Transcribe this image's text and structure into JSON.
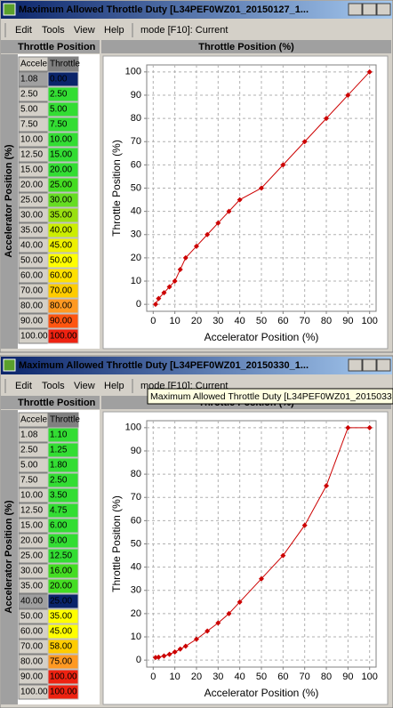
{
  "windows": [
    {
      "title": "Maximum Allowed Throttle Duty [L34PEF0WZ01_20150127_1...",
      "menu": [
        "Edit",
        "Tools",
        "View",
        "Help"
      ],
      "mode": "mode [F10]: Current",
      "table_header": "Throttle Position",
      "side_label": "Accelerator Position (%)",
      "chart_header": "Throttle Position (%)",
      "table": {
        "columns": [
          "Acceler",
          "Throttle"
        ],
        "selected_row": 0,
        "rows": [
          [
            "1.08",
            "0.00"
          ],
          [
            "2.50",
            "2.50"
          ],
          [
            "5.00",
            "5.00"
          ],
          [
            "7.50",
            "7.50"
          ],
          [
            "10.00",
            "10.00"
          ],
          [
            "12.50",
            "15.00"
          ],
          [
            "15.00",
            "20.00"
          ],
          [
            "20.00",
            "25.00"
          ],
          [
            "25.00",
            "30.00"
          ],
          [
            "30.00",
            "35.00"
          ],
          [
            "35.00",
            "40.00"
          ],
          [
            "40.00",
            "45.00"
          ],
          [
            "50.00",
            "50.00"
          ],
          [
            "60.00",
            "60.00"
          ],
          [
            "70.00",
            "70.00"
          ],
          [
            "80.00",
            "80.00"
          ],
          [
            "90.00",
            "90.00"
          ],
          [
            "100.00",
            "100.00"
          ]
        ],
        "colors": [
          "#33dd33",
          "#33dd33",
          "#33dd33",
          "#33dd33",
          "#33dd33",
          "#33dd33",
          "#33dd33",
          "#44dd22",
          "#66dd22",
          "#99e011",
          "#ccee00",
          "#eef000",
          "#ffff00",
          "#ffe000",
          "#ffcc00",
          "#ff9922",
          "#ff5511",
          "#ee2211"
        ]
      }
    },
    {
      "title": "Maximum Allowed Throttle Duty [L34PEF0WZ01_20150330_1...",
      "menu": [
        "Edit",
        "Tools",
        "View",
        "Help"
      ],
      "mode": "mode [F10]: Current",
      "table_header": "Throttle Position",
      "side_label": "Accelerator Position (%)",
      "chart_header": "Throttle Position (%)",
      "table": {
        "columns": [
          "Acceler",
          "Throttle"
        ],
        "selected_row": 11,
        "rows": [
          [
            "1.08",
            "1.10"
          ],
          [
            "2.50",
            "1.25"
          ],
          [
            "5.00",
            "1.80"
          ],
          [
            "7.50",
            "2.50"
          ],
          [
            "10.00",
            "3.50"
          ],
          [
            "12.50",
            "4.75"
          ],
          [
            "15.00",
            "6.00"
          ],
          [
            "20.00",
            "9.00"
          ],
          [
            "25.00",
            "12.50"
          ],
          [
            "30.00",
            "16.00"
          ],
          [
            "35.00",
            "20.00"
          ],
          [
            "40.00",
            "25.00"
          ],
          [
            "50.00",
            "35.00"
          ],
          [
            "60.00",
            "45.00"
          ],
          [
            "70.00",
            "58.00"
          ],
          [
            "80.00",
            "75.00"
          ],
          [
            "90.00",
            "100.00"
          ],
          [
            "100.00",
            "100.00"
          ]
        ],
        "colors": [
          "#33dd33",
          "#33dd33",
          "#33dd33",
          "#33dd33",
          "#33dd33",
          "#33dd33",
          "#33dd33",
          "#33dd33",
          "#33dd33",
          "#44dd22",
          "#44dd22",
          "#e0e000",
          "#ffff00",
          "#ffff00",
          "#ffcc00",
          "#ff9922",
          "#ee2211",
          "#ee2211"
        ]
      }
    }
  ],
  "tooltip": "Maximum Allowed Throttle Duty [L34PEF0WZ01_2015033",
  "chart_data": [
    {
      "type": "line",
      "xlabel": "Accelerator Position (%)",
      "ylabel": "Throttle Position (%)",
      "color": "#cc0000",
      "grid": true,
      "x": [
        1.08,
        2.5,
        5,
        7.5,
        10,
        12.5,
        15,
        20,
        25,
        30,
        35,
        40,
        50,
        60,
        70,
        80,
        90,
        100
      ],
      "values": [
        0,
        2.5,
        5,
        7.5,
        10,
        15,
        20,
        25,
        30,
        35,
        40,
        45,
        50,
        60,
        70,
        80,
        90,
        100
      ],
      "xlim": [
        -3,
        103
      ],
      "ylim": [
        -3,
        103
      ],
      "xticks": [
        0,
        10,
        20,
        30,
        40,
        50,
        60,
        70,
        80,
        90,
        100
      ],
      "yticks": [
        0,
        10,
        20,
        30,
        40,
        50,
        60,
        70,
        80,
        90,
        100
      ]
    },
    {
      "type": "line",
      "xlabel": "Accelerator Position (%)",
      "ylabel": "Throttle Position (%)",
      "color": "#cc0000",
      "grid": true,
      "x": [
        1.08,
        2.5,
        5,
        7.5,
        10,
        12.5,
        15,
        20,
        25,
        30,
        35,
        40,
        50,
        60,
        70,
        80,
        90,
        100
      ],
      "values": [
        1.1,
        1.25,
        1.8,
        2.5,
        3.5,
        4.75,
        6,
        9,
        12.5,
        16,
        20,
        25,
        35,
        45,
        58,
        75,
        100,
        100
      ],
      "xlim": [
        -3,
        103
      ],
      "ylim": [
        -3,
        103
      ],
      "xticks": [
        0,
        10,
        20,
        30,
        40,
        50,
        60,
        70,
        80,
        90,
        100
      ],
      "yticks": [
        0,
        10,
        20,
        30,
        40,
        50,
        60,
        70,
        80,
        90,
        100
      ]
    }
  ]
}
